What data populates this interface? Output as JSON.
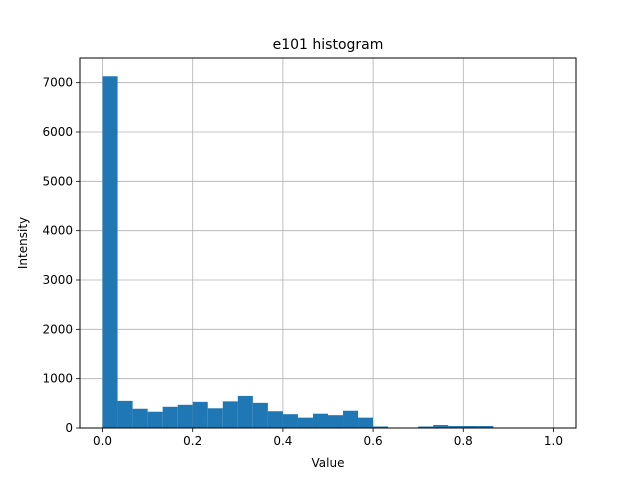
{
  "chart_data": {
    "type": "bar",
    "title": "e101 histogram",
    "xlabel": "Value",
    "ylabel": "Intensity",
    "xlim": [
      -0.05,
      1.05
    ],
    "ylim": [
      0,
      7500
    ],
    "xticks": [
      0.0,
      0.2,
      0.4,
      0.6,
      0.8,
      1.0
    ],
    "xtick_labels": [
      "0.0",
      "0.2",
      "0.4",
      "0.6",
      "0.8",
      "1.0"
    ],
    "yticks": [
      0,
      1000,
      2000,
      3000,
      4000,
      5000,
      6000,
      7000
    ],
    "ytick_labels": [
      "0",
      "1000",
      "2000",
      "3000",
      "4000",
      "5000",
      "6000",
      "7000"
    ],
    "grid": true,
    "bar_color": "#1f77b4",
    "bin_edges": [
      0.0,
      0.03333,
      0.06667,
      0.1,
      0.13333,
      0.16667,
      0.2,
      0.23333,
      0.26667,
      0.3,
      0.33333,
      0.36667,
      0.4,
      0.43333,
      0.46667,
      0.5,
      0.53333,
      0.56667,
      0.6,
      0.63333,
      0.66667,
      0.7,
      0.73333,
      0.76667,
      0.8,
      0.83333,
      0.86667,
      0.9,
      0.93333,
      0.96667,
      1.0
    ],
    "values": [
      7130,
      550,
      390,
      330,
      430,
      470,
      530,
      400,
      540,
      650,
      510,
      340,
      280,
      210,
      290,
      260,
      350,
      210,
      30,
      0,
      0,
      30,
      60,
      40,
      40,
      40,
      0,
      0,
      0,
      0
    ]
  }
}
